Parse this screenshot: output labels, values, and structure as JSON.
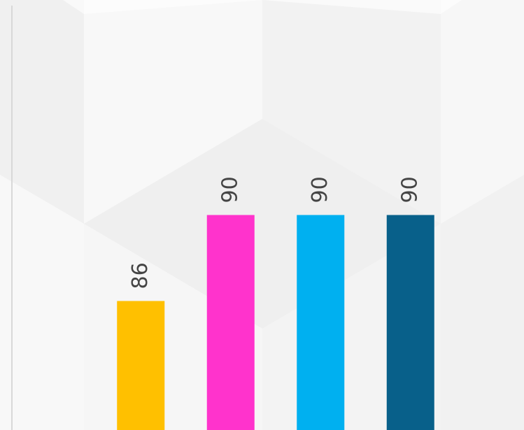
{
  "chart_data": {
    "type": "bar",
    "categories": [
      null,
      null,
      null,
      null
    ],
    "values": [
      86,
      90,
      90,
      90
    ],
    "colors": [
      "#ffc000",
      "#ff33cc",
      "#00b0f0",
      "#08608a"
    ],
    "ylim": [
      80,
      100
    ]
  }
}
